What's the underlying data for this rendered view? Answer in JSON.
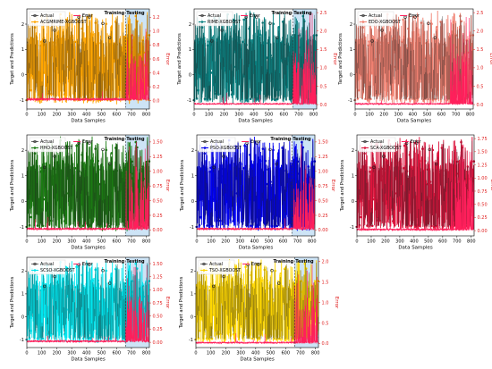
{
  "figure": {
    "colors": {
      "actual": "#222222",
      "error": "#ff1f5b",
      "axis_right": "#e02020",
      "test_shade": "#b8d8f2"
    },
    "common": {
      "xlabel": "Data Samples",
      "ylabel": "Target and Predictions",
      "y2label": "Error",
      "legend_actual": "Actual",
      "legend_error": "Error",
      "training_label": "Training",
      "testing_label": "Testing",
      "split_at": 660,
      "xlim": [
        0,
        820
      ],
      "ylim": [
        -1.35,
        2.6
      ],
      "x_ticks": [
        0,
        100,
        200,
        300,
        400,
        500,
        600,
        700,
        800
      ],
      "y_ticks": [
        -1,
        0,
        1,
        2
      ]
    }
  },
  "chart_data": [
    {
      "type": "line",
      "model": "ACGMRIME-XGBOOST",
      "color": "#ffa500",
      "show_split": true,
      "y2lim": [
        -0.12,
        1.32
      ],
      "y2_ticks": [
        0.0,
        0.2,
        0.4,
        0.6,
        0.8,
        1.0,
        1.2
      ],
      "error_max": 1.2,
      "series": [
        {
          "name": "Actual"
        },
        {
          "name": "ACGMRIME-XGBOOST"
        },
        {
          "name": "Error"
        }
      ]
    },
    {
      "type": "line",
      "model": "RIME-XGBOOST",
      "color": "#0a8080",
      "show_split": true,
      "y2lim": [
        -0.12,
        2.6
      ],
      "y2_ticks": [
        0.0,
        0.5,
        1.0,
        1.5,
        2.0,
        2.5
      ],
      "error_max": 2.5,
      "series": [
        {
          "name": "Actual"
        },
        {
          "name": "RIME-XGBOOST"
        },
        {
          "name": "Error"
        }
      ]
    },
    {
      "type": "line",
      "model": "EDO-XGBOOST",
      "color": "#f08070",
      "show_split": false,
      "y2lim": [
        -0.12,
        2.6
      ],
      "y2_ticks": [
        0.0,
        0.5,
        1.0,
        1.5,
        2.0,
        2.5
      ],
      "error_max": 2.4,
      "series": [
        {
          "name": "Actual"
        },
        {
          "name": "EDO-XGBOOST"
        },
        {
          "name": "Error"
        }
      ]
    },
    {
      "type": "line",
      "model": "HHO-XGBOOST",
      "color": "#1a7a12",
      "show_split": true,
      "y2lim": [
        -0.1,
        1.62
      ],
      "y2_ticks": [
        0.0,
        0.25,
        0.5,
        0.75,
        1.0,
        1.25,
        1.5
      ],
      "error_max": 1.5,
      "series": [
        {
          "name": "Actual"
        },
        {
          "name": "HHO-XGBOOST"
        },
        {
          "name": "Error"
        }
      ]
    },
    {
      "type": "line",
      "model": "PSO-XGBOOST",
      "color": "#0000ee",
      "show_split": true,
      "y2lim": [
        -0.1,
        1.62
      ],
      "y2_ticks": [
        0.0,
        0.25,
        0.5,
        0.75,
        1.0,
        1.25,
        1.5
      ],
      "error_max": 1.5,
      "series": [
        {
          "name": "Actual"
        },
        {
          "name": "PSO-XGBOOST"
        },
        {
          "name": "Error"
        }
      ]
    },
    {
      "type": "line",
      "model": "SCA-XGBOOST",
      "color": "#dc143c",
      "show_split": false,
      "y2lim": [
        -0.1,
        1.82
      ],
      "y2_ticks": [
        0.0,
        0.25,
        0.5,
        0.75,
        1.0,
        1.25,
        1.5,
        1.75
      ],
      "error_max": 1.75,
      "series": [
        {
          "name": "Actual"
        },
        {
          "name": "SCA-XGBOOST"
        },
        {
          "name": "Error"
        }
      ]
    },
    {
      "type": "line",
      "model": "SCSO-XGBOOST",
      "color": "#00e5ee",
      "show_split": true,
      "y2lim": [
        -0.1,
        1.62
      ],
      "y2_ticks": [
        0.0,
        0.25,
        0.5,
        0.75,
        1.0,
        1.25,
        1.5
      ],
      "error_max": 1.5,
      "series": [
        {
          "name": "Actual"
        },
        {
          "name": "SCSO-XGBOOST"
        },
        {
          "name": "Error"
        }
      ]
    },
    {
      "type": "line",
      "model": "TSO-XGBOOST",
      "color": "#ffd700",
      "show_split": true,
      "y2lim": [
        -0.1,
        2.1
      ],
      "y2_ticks": [
        0.0,
        0.5,
        1.0,
        1.5,
        2.0
      ],
      "error_max": 2.0,
      "series": [
        {
          "name": "Actual"
        },
        {
          "name": "TSO-XGBOOST"
        },
        {
          "name": "Error"
        }
      ]
    }
  ]
}
